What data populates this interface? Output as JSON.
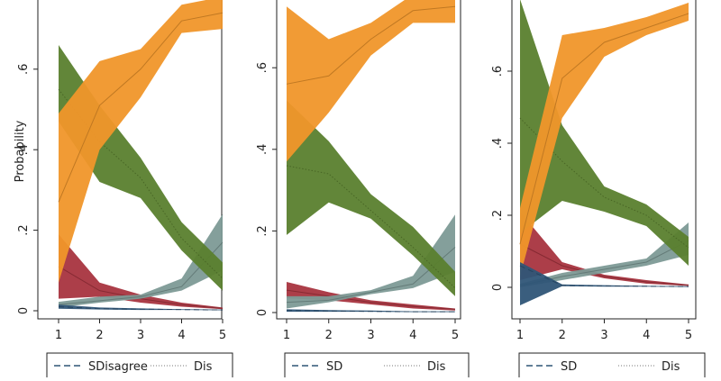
{
  "chart_data": [
    {
      "type": "area",
      "ylabel": "Probability",
      "xlim": [
        1,
        5
      ],
      "ylim": [
        0,
        0.8
      ],
      "x_ticks": [
        "1",
        "2",
        "3",
        "4",
        "5"
      ],
      "y_ticks": [
        "0",
        ".2",
        ".4",
        ".6"
      ],
      "legend_entries": [
        "SDisagree",
        "Dis"
      ],
      "series": [
        {
          "color": "#a8343f",
          "x": [
            1,
            2,
            3,
            4,
            5
          ],
          "values": [
            0.11,
            0.05,
            0.03,
            0.015,
            0.006
          ],
          "lower": [
            0.03,
            0.035,
            0.02,
            0.01,
            0.004
          ],
          "upper": [
            0.19,
            0.07,
            0.04,
            0.02,
            0.008
          ]
        },
        {
          "color": "#7d9a96",
          "x": [
            1,
            2,
            3,
            4,
            5
          ],
          "values": [
            0.015,
            0.025,
            0.035,
            0.06,
            0.17
          ],
          "lower": [
            0.008,
            0.02,
            0.03,
            0.05,
            0.1
          ],
          "upper": [
            0.022,
            0.035,
            0.04,
            0.08,
            0.24
          ]
        },
        {
          "color": "#5a7f2e",
          "x": [
            1,
            2,
            3,
            4,
            5
          ],
          "values": [
            0.55,
            0.42,
            0.33,
            0.18,
            0.08
          ],
          "lower": [
            0.47,
            0.32,
            0.28,
            0.15,
            0.05
          ],
          "upper": [
            0.66,
            0.51,
            0.38,
            0.22,
            0.12
          ]
        },
        {
          "color": "#f0962a",
          "x": [
            1,
            2,
            3,
            4,
            5
          ],
          "values": [
            0.27,
            0.51,
            0.6,
            0.72,
            0.74
          ],
          "lower": [
            0.07,
            0.4,
            0.53,
            0.69,
            0.7
          ],
          "upper": [
            0.49,
            0.62,
            0.65,
            0.76,
            0.78
          ]
        },
        {
          "color": "#2f5577",
          "x": [
            1,
            2,
            3,
            4,
            5
          ],
          "values": [
            0.01,
            0.005,
            0.004,
            0.003,
            0.002
          ],
          "lower": [
            0.005,
            0.003,
            0.002,
            0.002,
            0.001
          ],
          "upper": [
            0.015,
            0.008,
            0.006,
            0.004,
            0.003
          ]
        }
      ]
    },
    {
      "type": "area",
      "xlim": [
        1,
        5
      ],
      "ylim": [
        0,
        0.8
      ],
      "x_ticks": [
        "1",
        "2",
        "3",
        "4",
        "5"
      ],
      "y_ticks": [
        "0",
        ".2",
        ".4",
        ".6"
      ],
      "legend_entries": [
        "SD",
        "Dis"
      ],
      "series": [
        {
          "color": "#a8343f",
          "x": [
            1,
            2,
            3,
            4,
            5
          ],
          "values": [
            0.055,
            0.04,
            0.025,
            0.015,
            0.008
          ],
          "lower": [
            0.035,
            0.03,
            0.02,
            0.01,
            0.005
          ],
          "upper": [
            0.075,
            0.05,
            0.03,
            0.02,
            0.01
          ]
        },
        {
          "color": "#7d9a96",
          "x": [
            1,
            2,
            3,
            4,
            5
          ],
          "values": [
            0.025,
            0.03,
            0.05,
            0.07,
            0.16
          ],
          "lower": [
            0.01,
            0.025,
            0.045,
            0.06,
            0.1
          ],
          "upper": [
            0.04,
            0.04,
            0.055,
            0.09,
            0.24
          ]
        },
        {
          "color": "#5a7f2e",
          "x": [
            1,
            2,
            3,
            4,
            5
          ],
          "values": [
            0.36,
            0.34,
            0.25,
            0.16,
            0.06
          ],
          "lower": [
            0.19,
            0.27,
            0.23,
            0.14,
            0.04
          ],
          "upper": [
            0.52,
            0.42,
            0.29,
            0.21,
            0.1
          ]
        },
        {
          "color": "#f0962a",
          "x": [
            1,
            2,
            3,
            4,
            5
          ],
          "values": [
            0.56,
            0.58,
            0.67,
            0.74,
            0.75
          ],
          "lower": [
            0.37,
            0.49,
            0.63,
            0.71,
            0.71
          ],
          "upper": [
            0.75,
            0.67,
            0.71,
            0.78,
            0.8
          ]
        },
        {
          "color": "#2f5577",
          "x": [
            1,
            2,
            3,
            4,
            5
          ],
          "values": [
            0.005,
            0.004,
            0.003,
            0.002,
            0.002
          ],
          "lower": [
            0.002,
            0.002,
            0.002,
            0.001,
            0.001
          ],
          "upper": [
            0.008,
            0.006,
            0.005,
            0.003,
            0.003
          ]
        }
      ]
    },
    {
      "type": "area",
      "xlim": [
        1,
        5
      ],
      "ylim": [
        -0.05,
        0.8
      ],
      "x_ticks": [
        "1",
        "2",
        "3",
        "4",
        "5"
      ],
      "y_ticks": [
        "0",
        ".2",
        ".4",
        ".6"
      ],
      "legend_entries": [
        "SD",
        "Dis"
      ],
      "series": [
        {
          "color": "#a8343f",
          "x": [
            1,
            2,
            3,
            4,
            5
          ],
          "values": [
            0.12,
            0.06,
            0.03,
            0.015,
            0.006
          ],
          "lower": [
            0.02,
            0.05,
            0.025,
            0.01,
            0.004
          ],
          "upper": [
            0.21,
            0.07,
            0.035,
            0.02,
            0.008
          ]
        },
        {
          "color": "#7d9a96",
          "x": [
            1,
            2,
            3,
            4,
            5
          ],
          "values": [
            0.005,
            0.03,
            0.05,
            0.07,
            0.13
          ],
          "lower": [
            0.0,
            0.02,
            0.04,
            0.06,
            0.09
          ],
          "upper": [
            0.01,
            0.04,
            0.06,
            0.08,
            0.18
          ]
        },
        {
          "color": "#5a7f2e",
          "x": [
            1,
            2,
            3,
            4,
            5
          ],
          "values": [
            0.47,
            0.35,
            0.25,
            0.2,
            0.11
          ],
          "lower": [
            0.15,
            0.24,
            0.21,
            0.17,
            0.06
          ],
          "upper": [
            0.8,
            0.45,
            0.28,
            0.23,
            0.14
          ]
        },
        {
          "color": "#f0962a",
          "x": [
            1,
            2,
            3,
            4,
            5
          ],
          "values": [
            0.12,
            0.58,
            0.68,
            0.72,
            0.76
          ],
          "lower": [
            0.03,
            0.47,
            0.64,
            0.7,
            0.74
          ],
          "upper": [
            0.22,
            0.7,
            0.72,
            0.75,
            0.79
          ]
        },
        {
          "color": "#2f5577",
          "x": [
            1,
            2,
            3,
            4,
            5
          ],
          "values": [
            0.06,
            0.005,
            0.004,
            0.003,
            0.002
          ],
          "lower": [
            -0.05,
            0.003,
            0.002,
            0.002,
            0.001
          ],
          "upper": [
            0.07,
            0.008,
            0.006,
            0.004,
            0.003
          ]
        }
      ]
    }
  ]
}
